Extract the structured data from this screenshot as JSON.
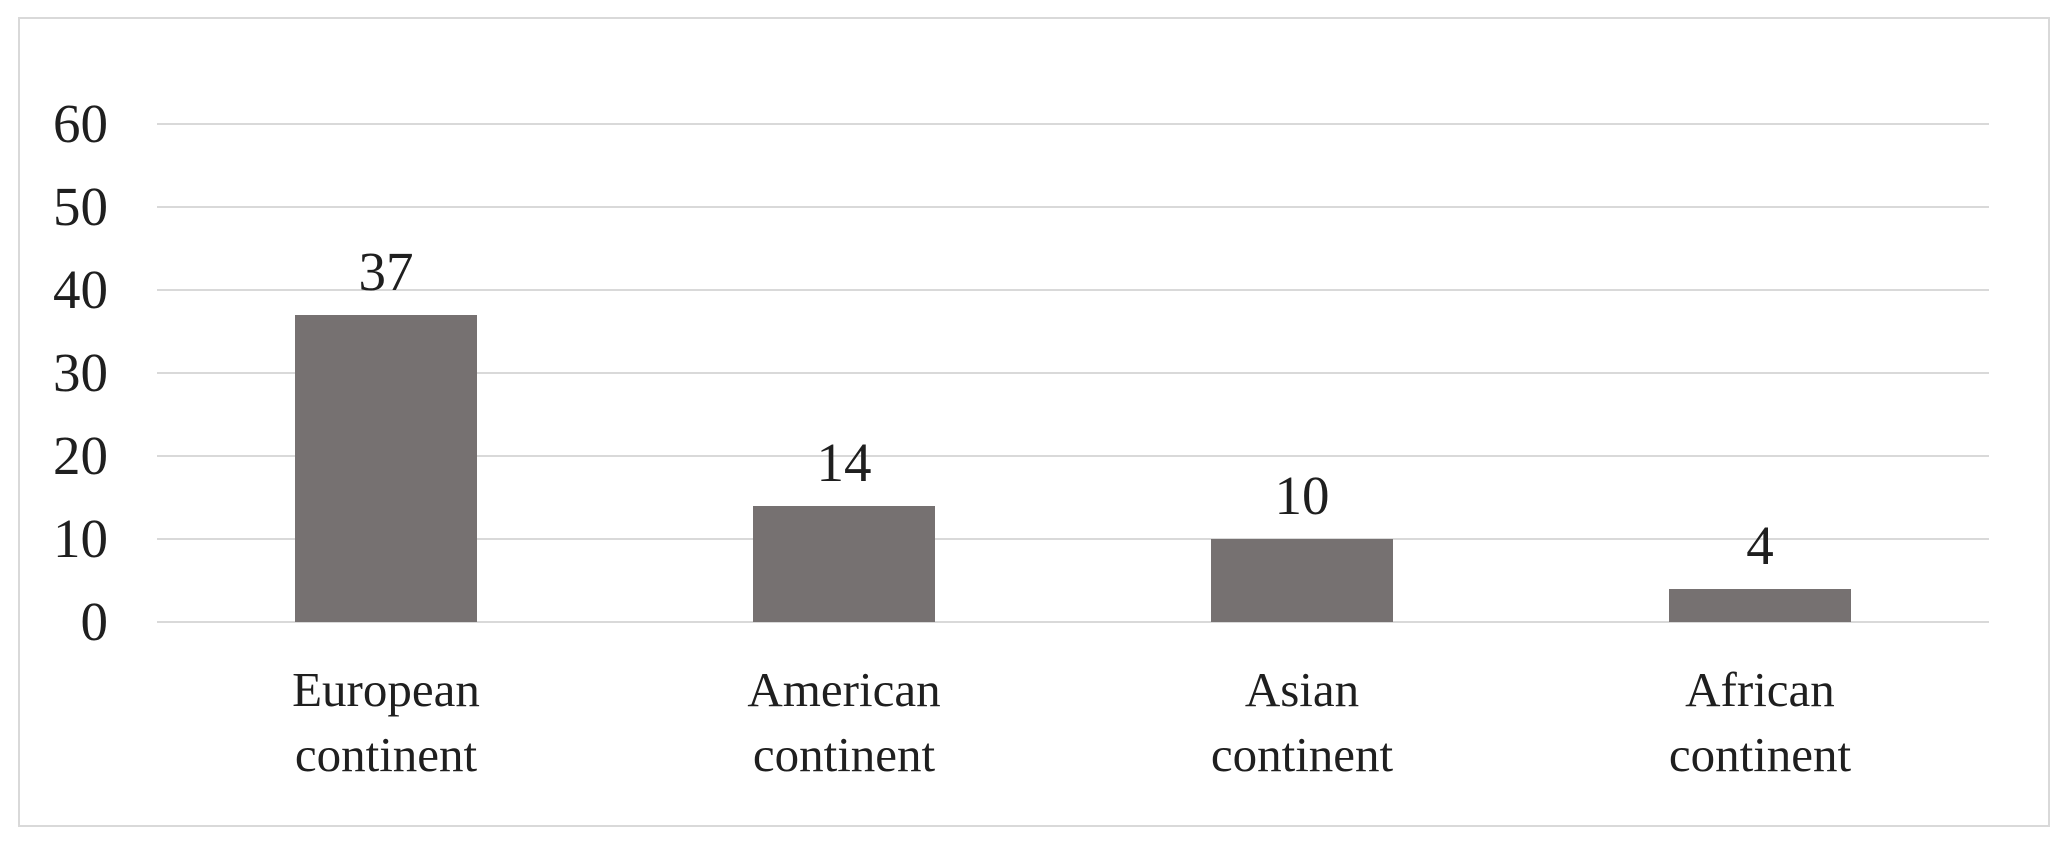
{
  "figure": {
    "background_color": "#ffffff",
    "frame_border_color": "#d9d9d9"
  },
  "chart_data": {
    "type": "bar",
    "title": "",
    "xlabel": "",
    "ylabel": "",
    "categories": [
      "European continent",
      "American continent",
      "Asian continent",
      "African continent"
    ],
    "category_label_lines": [
      [
        "European",
        "continent"
      ],
      [
        "American",
        "continent"
      ],
      [
        "Asian",
        "continent"
      ],
      [
        "African",
        "continent"
      ]
    ],
    "values": [
      37,
      14,
      10,
      4
    ],
    "data_labels": [
      "37",
      "14",
      "10",
      "4"
    ],
    "ylim": [
      0,
      60
    ],
    "yticks": [
      0,
      10,
      20,
      30,
      40,
      50,
      60
    ],
    "ytick_labels": [
      "0",
      "10",
      "20",
      "30",
      "40",
      "50",
      "60"
    ],
    "grid": true,
    "legend_position": "none",
    "bar_color": "#767171",
    "gridline_color": "#d9d9d9",
    "text_color": "#1f1f1f"
  }
}
